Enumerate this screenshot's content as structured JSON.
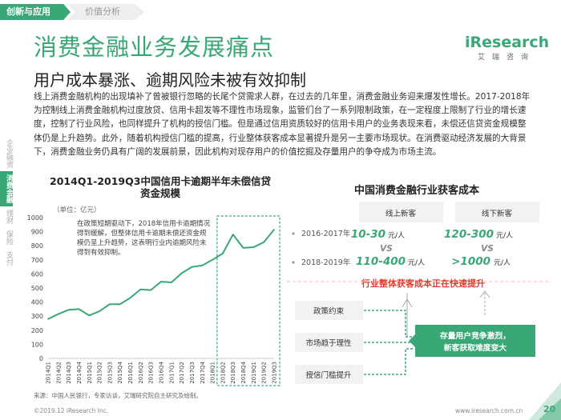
{
  "breadcrumb": {
    "active": "创新与应用",
    "next": "价值分析"
  },
  "title": "消费金融业务发展痛点",
  "subtitle": "用户成本暴涨、逾期风险未被有效抑制",
  "logo": {
    "main": "iResearch",
    "sub": "艾瑞咨询"
  },
  "body_text": "线上消费金融机构的出现填补了曾被银行忽略的长尾个贷需求人群，在过去的几年里，消费金融业务迎来爆发性增长。2017-2018年为控制线上消费金融机构过度放贷、信用卡超发等不理性市场现象，监管们台了一系列限制政策，在一定程度上限制了行业的增长速度，控制了行业风险，也同样提升了机构的授信门槛。但是通过信用资质较好的信用卡用户的业务表现来看，未偿还信贷资金规模整体仍是上升趋势。此外，随着机构授信门槛的提高，行业整体获客成本显著提升是另一主要市场现状。在消费驱动经济发展的大背景下，消费金融业务仍具有广阔的发展前景，因此机构对现存用户的价值挖掘及存量用户的争夺成为市场主流。",
  "side_nav": [
    {
      "label": "企业融资",
      "active": false
    },
    {
      "label": "消费金融",
      "active": true
    },
    {
      "label": "理财",
      "active": false
    },
    {
      "label": "保险",
      "active": false
    },
    {
      "label": "支付",
      "active": false
    }
  ],
  "colors": {
    "accent": "#3aa876",
    "line": "#3aa876",
    "highlight_box": "#3aa876",
    "red": "#e23c2e",
    "arrow_bg": "#f5f5f5"
  },
  "chart_data": {
    "type": "line",
    "title": "2014Q1-2019Q3中国信用卡逾期半年未偿信贷资金规模",
    "unit_label": "（单位：亿元）",
    "annotation": "在政策短期驱动下，2018年信用卡逾期情况得到缓解，但整体信用卡逾期未偿还资金规模仍呈上升趋势，这表明行业内逾期风险未得到有效抑制。",
    "ylim": [
      0,
      1000
    ],
    "yticks": [
      0,
      100,
      200,
      300,
      400,
      500,
      600,
      700,
      800,
      900,
      1000
    ],
    "categories": [
      "2014Q1",
      "2014Q2",
      "2014Q3",
      "2014Q4",
      "2015Q1",
      "2015Q2",
      "2015Q3",
      "2015Q4",
      "2016Q1",
      "2016Q2",
      "2016Q3",
      "2016Q4",
      "2017Q1",
      "2017Q2",
      "2017Q3",
      "2017Q4",
      "2018Q1",
      "2018Q2",
      "2018Q3",
      "2018Q4",
      "2019Q1",
      "2019Q2",
      "2019Q3"
    ],
    "values": [
      280,
      315,
      345,
      350,
      305,
      335,
      385,
      385,
      430,
      490,
      485,
      545,
      540,
      605,
      650,
      660,
      700,
      745,
      880,
      785,
      790,
      825,
      915
    ],
    "highlight_range": [
      "2018Q2",
      "2019Q3"
    ],
    "grid": false
  },
  "cost": {
    "title": "中国消费金融行业获客成本",
    "col_online": "线上新客",
    "col_offline": "线下新客",
    "rows": [
      {
        "period": "2016-2017年",
        "online_value": "10-30",
        "online_unit": "元/人",
        "offline_value": "120-300",
        "offline_unit": "元/人"
      },
      {
        "period": "2018-2019年",
        "online_value": "110-400",
        "online_unit": "元/人",
        "offline_value": ">1000",
        "offline_unit": "元/人"
      }
    ],
    "vs": "VS",
    "rising_banner": "行业整体获客成本正在快速提升",
    "factors": [
      "政策约束",
      "市场趋于理性",
      "授信门槛提升"
    ],
    "result": "存量用户竞争激烈，新客获取难度变大"
  },
  "footer": {
    "source": "来源：中国人民银行，专家访谈，艾瑞研究院自主研究及绘制。",
    "copyright": "©2019.12 iResearch Inc.",
    "site": "www.iresearch.com.cn",
    "page": "20"
  }
}
